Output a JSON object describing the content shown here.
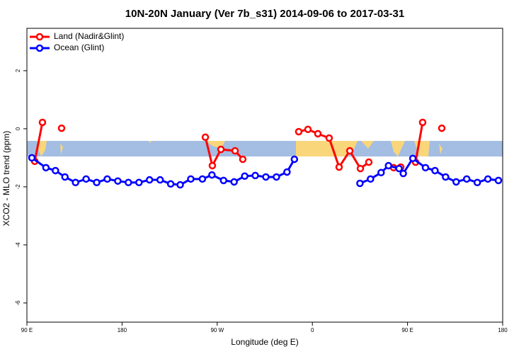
{
  "chart_data": {
    "type": "line",
    "title": "10N-20N January (Ver 7b_s31)   2014-09-06 to 2017-03-31",
    "x_label": "Longitude (deg E)",
    "y_label": "XCO2 - MLO trend (ppm)",
    "xlim": [
      90,
      540
    ],
    "ylim": [
      -6.66,
      3.46
    ],
    "xticks": [
      {
        "value": 90,
        "label": "90 E"
      },
      180,
      {
        "value": 270,
        "label": "90 W"
      },
      {
        "value": 360,
        "label": "0"
      },
      {
        "value": 450,
        "label": "90 E"
      },
      {
        "value": 540,
        "label": "180"
      }
    ],
    "yticks": [
      2,
      0,
      -2,
      -4,
      -6
    ],
    "legend": "top-left",
    "series": [
      {
        "name": "Land (Nadir&Glint)",
        "color": "#ff0000",
        "x": [
          97.4,
          104.7,
          110,
          122.8,
          200,
          258.8,
          265.4,
          273.5,
          286.9,
          294.2,
          320,
          347.1,
          355.8,
          365.2,
          375.9,
          385.3,
          395.4,
          405.4,
          413.4,
          425,
          436.9,
          443.6,
          450,
          457.6,
          464.3,
          470,
          482.4
        ],
        "values": [
          -1.12,
          0.22,
          null,
          0.02,
          null,
          -0.29,
          -1.27,
          -0.71,
          -0.76,
          -1.05,
          null,
          -0.1,
          -0.02,
          -0.17,
          -0.32,
          -1.32,
          -0.76,
          -1.37,
          -1.15,
          null,
          -1.34,
          -1.32,
          null,
          -1.15,
          0.22,
          null,
          0.02
        ]
      },
      {
        "name": "Ocean (Glint)",
        "color": "#0000ff",
        "x": [
          94.7,
          108,
          117,
          126,
          136,
          146,
          156,
          166,
          176,
          186,
          196,
          206,
          216,
          226,
          235,
          245,
          256,
          265,
          276,
          286,
          296,
          306,
          316,
          326,
          336,
          343,
          370,
          405,
          415,
          425,
          432,
          442,
          446,
          455,
          467,
          476,
          486,
          496,
          506,
          516,
          526,
          536
        ],
        "values": [
          -1.0,
          -1.34,
          -1.44,
          -1.66,
          -1.85,
          -1.73,
          -1.85,
          -1.73,
          -1.8,
          -1.85,
          -1.85,
          -1.76,
          -1.76,
          -1.9,
          -1.93,
          -1.73,
          -1.73,
          -1.59,
          -1.78,
          -1.83,
          -1.63,
          -1.61,
          -1.66,
          -1.66,
          -1.49,
          -1.05,
          null,
          -1.88,
          -1.73,
          -1.51,
          -1.27,
          -1.37,
          -1.54,
          -1.02,
          -1.34,
          -1.44,
          -1.66,
          -1.83,
          -1.73,
          -1.85,
          -1.73,
          -1.78
        ]
      }
    ]
  }
}
